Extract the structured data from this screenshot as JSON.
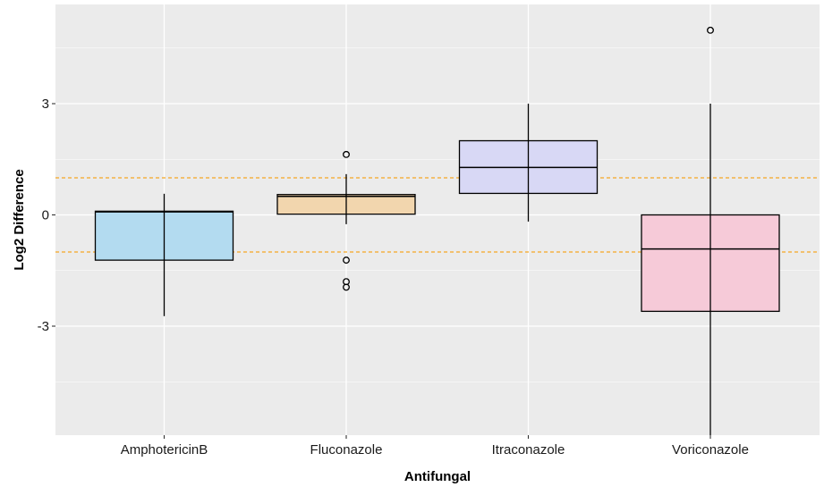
{
  "chart_data": {
    "type": "boxplot",
    "xlabel": "Antifungal",
    "ylabel": "Log2 Difference",
    "categories": [
      "AmphotericinB",
      "Fluconazole",
      "Itraconazole",
      "Voriconazole"
    ],
    "ylim": [
      -6,
      5.5
    ],
    "yticks": [
      -3,
      0,
      3
    ],
    "ytick_labels": [
      "-3",
      "0",
      "3"
    ],
    "grid": true,
    "reference_lines": [
      1,
      -1
    ],
    "boxes": [
      {
        "name": "AmphotericinB",
        "min": -2.73,
        "q1": -1.22,
        "median": 0.08,
        "q3": 0.1,
        "max": 0.57,
        "outliers": [],
        "color": "#b3dbf0"
      },
      {
        "name": "Fluconazole",
        "min": -0.25,
        "q1": 0.02,
        "median": 0.5,
        "q3": 0.55,
        "max": 1.1,
        "outliers": [
          1.63,
          -1.22,
          -1.8,
          -1.95
        ],
        "color": "#f2d6ae"
      },
      {
        "name": "Itraconazole",
        "min": -0.18,
        "q1": 0.58,
        "median": 1.28,
        "q3": 2.0,
        "max": 3.0,
        "outliers": [],
        "color": "#d8d8f5"
      },
      {
        "name": "Voriconazole",
        "min": -6.0,
        "q1": -2.6,
        "median": -0.92,
        "q3": 0.0,
        "max": 3.0,
        "outliers": [
          4.98
        ],
        "color": "#f6cad8"
      }
    ]
  },
  "colors": {
    "panel_background": "#ebebeb",
    "grid_major": "#ffffff",
    "reference_line": "#f5a623",
    "box_stroke": "#000000"
  }
}
